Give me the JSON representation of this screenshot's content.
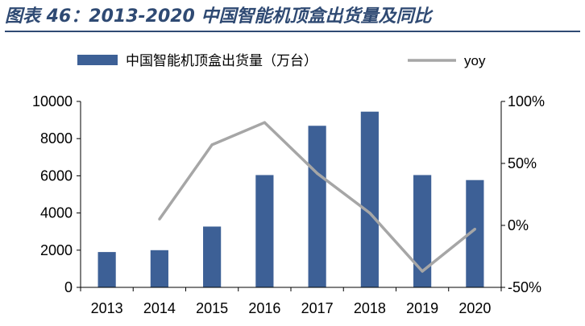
{
  "figure": {
    "title": "图表 46：2013-2020 中国智能机顶盒出货量及同比"
  },
  "chart_data": {
    "type": "bar",
    "categories": [
      "2013",
      "2014",
      "2015",
      "2016",
      "2017",
      "2018",
      "2019",
      "2020"
    ],
    "series": [
      {
        "name": "中国智能机顶盒出货量（万台）",
        "type": "bar",
        "axis": "left",
        "values": [
          1900,
          2000,
          3270,
          6040,
          8690,
          9450,
          6040,
          5770
        ],
        "color": "#3d6096"
      },
      {
        "name": "yoy",
        "type": "line",
        "axis": "right",
        "values": [
          null,
          5,
          65,
          83,
          42,
          10,
          -37,
          -3
        ],
        "color": "#a6a6a6"
      }
    ],
    "y_left": {
      "ylim": [
        0,
        10000
      ],
      "ticks": [
        "0",
        "2000",
        "4000",
        "6000",
        "8000",
        "10000"
      ]
    },
    "y_right": {
      "ylim": [
        -50,
        100
      ],
      "ticks": [
        "-50%",
        "0%",
        "50%",
        "100%"
      ]
    },
    "xlabel": "",
    "ylabel": "",
    "grid": false,
    "legend_position": "top"
  }
}
